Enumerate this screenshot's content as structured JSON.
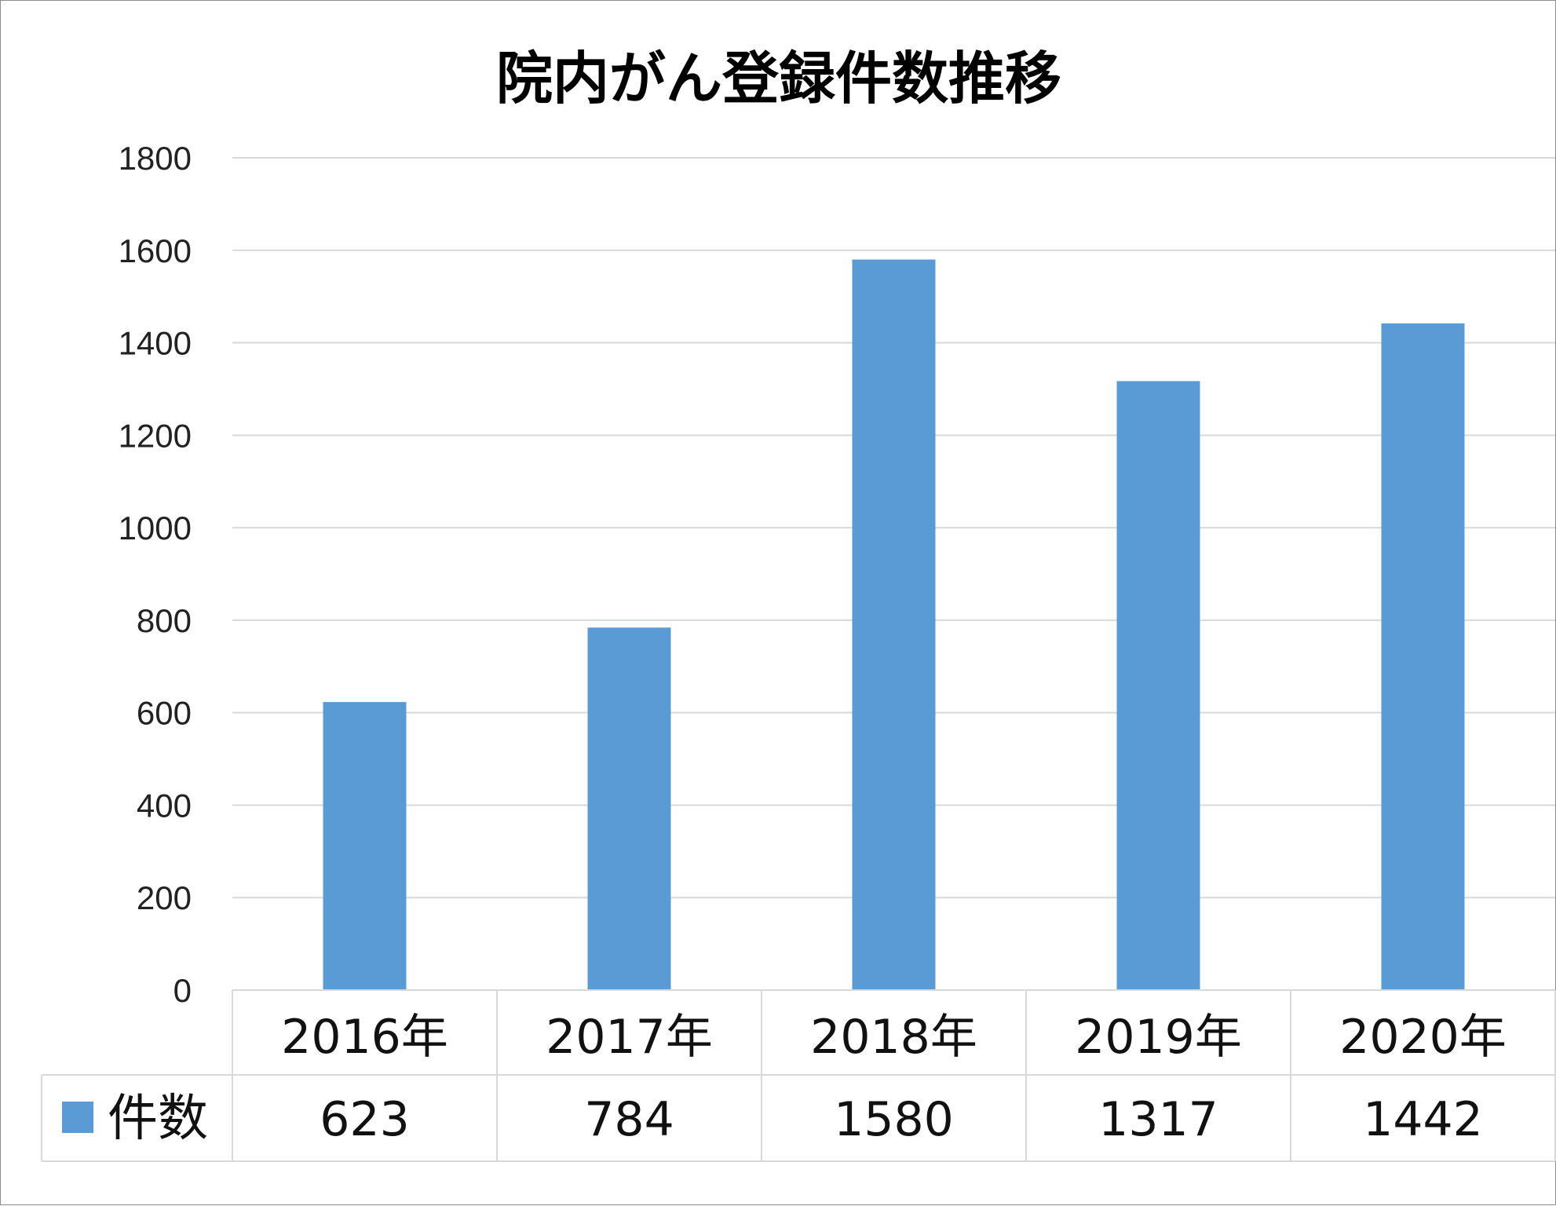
{
  "chart_data": {
    "type": "bar",
    "title": "院内がん登録件数推移",
    "categories": [
      "2016年",
      "2017年",
      "2018年",
      "2019年",
      "2020年"
    ],
    "series": [
      {
        "name": "件数",
        "values": [
          623,
          784,
          1580,
          1317,
          1442
        ],
        "color": "#5b9bd5"
      }
    ],
    "yticks": [
      "0",
      "200",
      "400",
      "600",
      "800",
      "1000",
      "1200",
      "1400",
      "1600",
      "1800"
    ],
    "ylim": [
      0,
      1800
    ],
    "grid": true,
    "legend": "data-table-left"
  }
}
